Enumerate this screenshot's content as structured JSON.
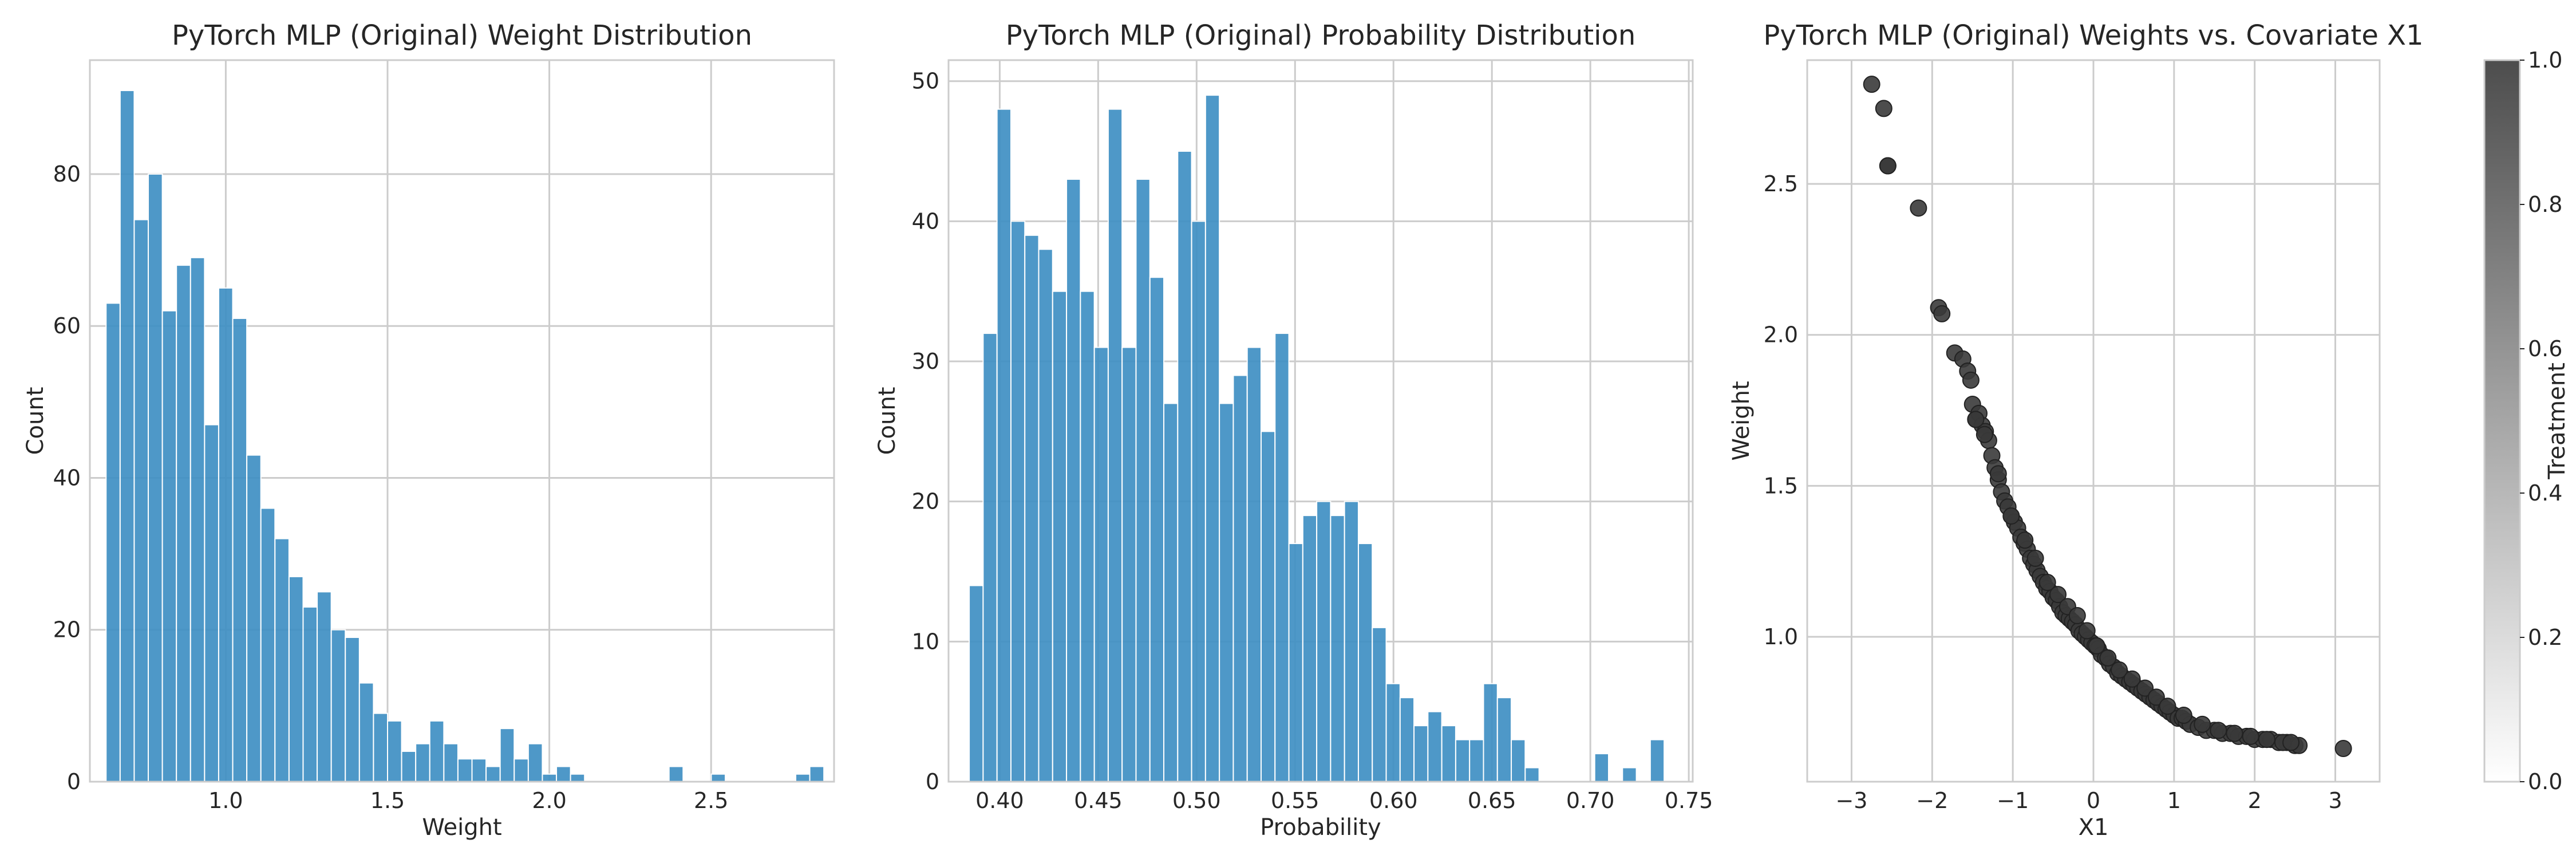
{
  "colors": {
    "bar": "#3f90c4",
    "grid": "#cccccc",
    "text": "#262626",
    "point": "#3a3a3a"
  },
  "chart_data": [
    {
      "type": "bar",
      "title": "PyTorch MLP (Original) Weight Distribution",
      "xlabel": "Weight",
      "ylabel": "Count",
      "xlim": [
        0.58,
        2.88
      ],
      "ylim": [
        0,
        95
      ],
      "grid": true,
      "xticks": [
        1.0,
        1.5,
        2.0,
        2.5
      ],
      "xtick_labels": [
        "1.0",
        "1.5",
        "2.0",
        "2.5"
      ],
      "yticks": [
        0,
        20,
        40,
        60,
        80
      ],
      "ytick_labels": [
        "0",
        "20",
        "40",
        "60",
        "80"
      ],
      "bin_start": 0.63,
      "bin_width": 0.0435,
      "values": [
        63,
        91,
        74,
        80,
        62,
        68,
        69,
        47,
        65,
        61,
        43,
        36,
        32,
        27,
        23,
        25,
        20,
        19,
        13,
        9,
        8,
        4,
        5,
        8,
        5,
        3,
        3,
        2,
        7,
        3,
        5,
        1,
        2,
        1,
        0,
        0,
        0,
        0,
        0,
        0,
        2,
        0,
        0,
        1,
        0,
        0,
        0,
        0,
        0,
        1,
        2
      ]
    },
    {
      "type": "bar",
      "title": "PyTorch MLP (Original) Probability Distribution",
      "xlabel": "Probability",
      "ylabel": "Count",
      "xlim": [
        0.374,
        0.752
      ],
      "ylim": [
        0,
        51.5
      ],
      "grid": true,
      "xticks": [
        0.4,
        0.45,
        0.5,
        0.55,
        0.6,
        0.65,
        0.7,
        0.75
      ],
      "xtick_labels": [
        "0.40",
        "0.45",
        "0.50",
        "0.55",
        "0.60",
        "0.65",
        "0.70",
        "0.75"
      ],
      "yticks": [
        0,
        10,
        20,
        30,
        40,
        50
      ],
      "ytick_labels": [
        "0",
        "10",
        "20",
        "30",
        "40",
        "50"
      ],
      "bin_start": 0.3845,
      "bin_width": 0.00706,
      "values": [
        14,
        32,
        48,
        40,
        39,
        38,
        35,
        43,
        35,
        31,
        48,
        31,
        43,
        36,
        27,
        45,
        40,
        49,
        27,
        29,
        31,
        25,
        32,
        17,
        19,
        20,
        19,
        20,
        17,
        11,
        7,
        6,
        4,
        5,
        4,
        3,
        3,
        7,
        6,
        3,
        1,
        0,
        0,
        0,
        0,
        2,
        0,
        1,
        0,
        3
      ]
    },
    {
      "type": "scatter",
      "title": "PyTorch MLP (Original) Weights vs. Covariate X1",
      "xlabel": "X1",
      "ylabel": "Weight",
      "xlim": [
        -3.55,
        3.55
      ],
      "ylim": [
        0.52,
        2.91
      ],
      "grid": true,
      "xticks": [
        -3,
        -2,
        -1,
        0,
        1,
        2,
        3
      ],
      "xtick_labels": [
        "−3",
        "−2",
        "−1",
        "0",
        "1",
        "2",
        "3"
      ],
      "yticks": [
        1.0,
        1.5,
        2.0,
        2.5
      ],
      "ytick_labels": [
        "1.0",
        "1.5",
        "2.0",
        "2.5"
      ],
      "series": [
        {
          "color_by": "Treatment",
          "x": [
            -2.75,
            -2.6,
            -2.55,
            -2.17,
            -1.92,
            -1.88,
            -1.72,
            -1.62,
            -1.56,
            -1.52,
            -1.5,
            -1.46,
            -1.42,
            -1.38,
            -1.34,
            -1.3,
            -1.26,
            -1.22,
            -1.18,
            -1.14,
            -1.1,
            -1.06,
            -1.02,
            -0.98,
            -0.94,
            -0.9,
            -0.86,
            -0.82,
            -0.78,
            -0.74,
            -0.7,
            -0.66,
            -0.62,
            -0.58,
            -0.54,
            -0.5,
            -0.46,
            -0.42,
            -0.38,
            -0.34,
            -0.3,
            -0.26,
            -0.22,
            -0.18,
            -0.14,
            -0.1,
            -0.06,
            -0.02,
            0.02,
            0.06,
            0.1,
            0.15,
            0.2,
            0.25,
            0.3,
            0.35,
            0.4,
            0.45,
            0.5,
            0.55,
            0.6,
            0.65,
            0.7,
            0.75,
            0.8,
            0.85,
            0.9,
            0.95,
            1.0,
            1.05,
            1.1,
            1.15,
            1.2,
            1.3,
            1.4,
            1.5,
            1.6,
            1.7,
            1.8,
            1.9,
            2.0,
            2.1,
            2.2,
            2.3,
            2.4,
            2.5,
            2.55,
            3.1,
            -2.55,
            -1.46,
            -1.35,
            -1.18,
            -1.02,
            -0.85,
            -0.72,
            -0.57,
            -0.44,
            -0.32,
            -0.2,
            -0.08,
            0.04,
            0.18,
            0.32,
            0.48,
            0.64,
            0.78,
            0.92,
            1.12,
            1.35,
            1.55,
            1.75,
            1.95,
            2.15,
            2.35,
            2.45
          ],
          "y": [
            2.83,
            2.75,
            2.56,
            2.42,
            2.09,
            2.07,
            1.94,
            1.92,
            1.88,
            1.85,
            1.77,
            1.72,
            1.74,
            1.7,
            1.68,
            1.65,
            1.6,
            1.56,
            1.52,
            1.48,
            1.45,
            1.43,
            1.4,
            1.38,
            1.36,
            1.33,
            1.31,
            1.29,
            1.26,
            1.24,
            1.22,
            1.2,
            1.18,
            1.16,
            1.15,
            1.13,
            1.12,
            1.1,
            1.08,
            1.07,
            1.06,
            1.05,
            1.04,
            1.02,
            1.01,
            1.0,
            0.99,
            0.98,
            0.97,
            0.96,
            0.94,
            0.93,
            0.91,
            0.9,
            0.88,
            0.87,
            0.86,
            0.85,
            0.84,
            0.83,
            0.82,
            0.81,
            0.8,
            0.79,
            0.78,
            0.77,
            0.76,
            0.75,
            0.74,
            0.73,
            0.73,
            0.72,
            0.71,
            0.7,
            0.69,
            0.69,
            0.68,
            0.68,
            0.67,
            0.67,
            0.66,
            0.66,
            0.66,
            0.65,
            0.65,
            0.64,
            0.64,
            0.63,
            2.56,
            1.72,
            1.67,
            1.54,
            1.4,
            1.32,
            1.26,
            1.18,
            1.14,
            1.1,
            1.07,
            1.02,
            0.97,
            0.93,
            0.89,
            0.86,
            0.83,
            0.8,
            0.77,
            0.74,
            0.71,
            0.69,
            0.68,
            0.67,
            0.66,
            0.65,
            0.65
          ]
        }
      ],
      "colorbar": {
        "label": "Treatment",
        "range": [
          0.0,
          1.0
        ],
        "ticks": [
          0.0,
          0.2,
          0.4,
          0.6,
          0.8,
          1.0
        ],
        "tick_labels": [
          "0.0",
          "0.2",
          "0.4",
          "0.6",
          "0.8",
          "1.0"
        ],
        "colors": [
          "#ffffff",
          "#4d4d4d"
        ]
      }
    }
  ]
}
